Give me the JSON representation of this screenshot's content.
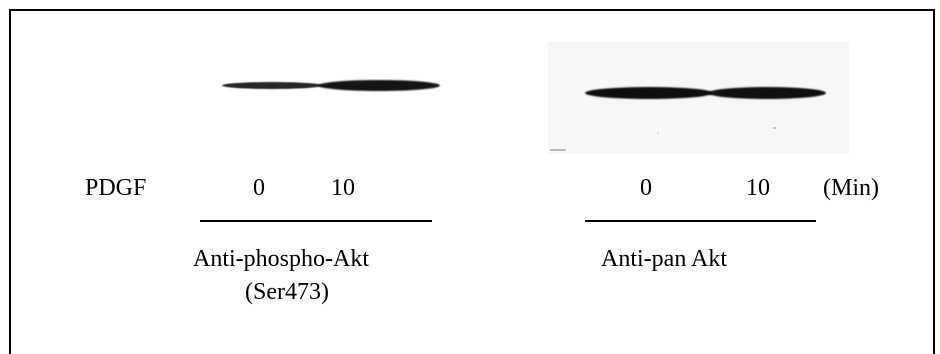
{
  "figure": {
    "row_label": "PDGF",
    "left_panel": {
      "lanes": [
        "0",
        "10"
      ],
      "antibody_line1": "Anti-phospho-Akt",
      "antibody_line2": "(Ser473)"
    },
    "right_panel": {
      "lanes": [
        "0",
        "10"
      ],
      "unit": "(Min)",
      "antibody_line1": "Anti-pan Akt"
    }
  }
}
